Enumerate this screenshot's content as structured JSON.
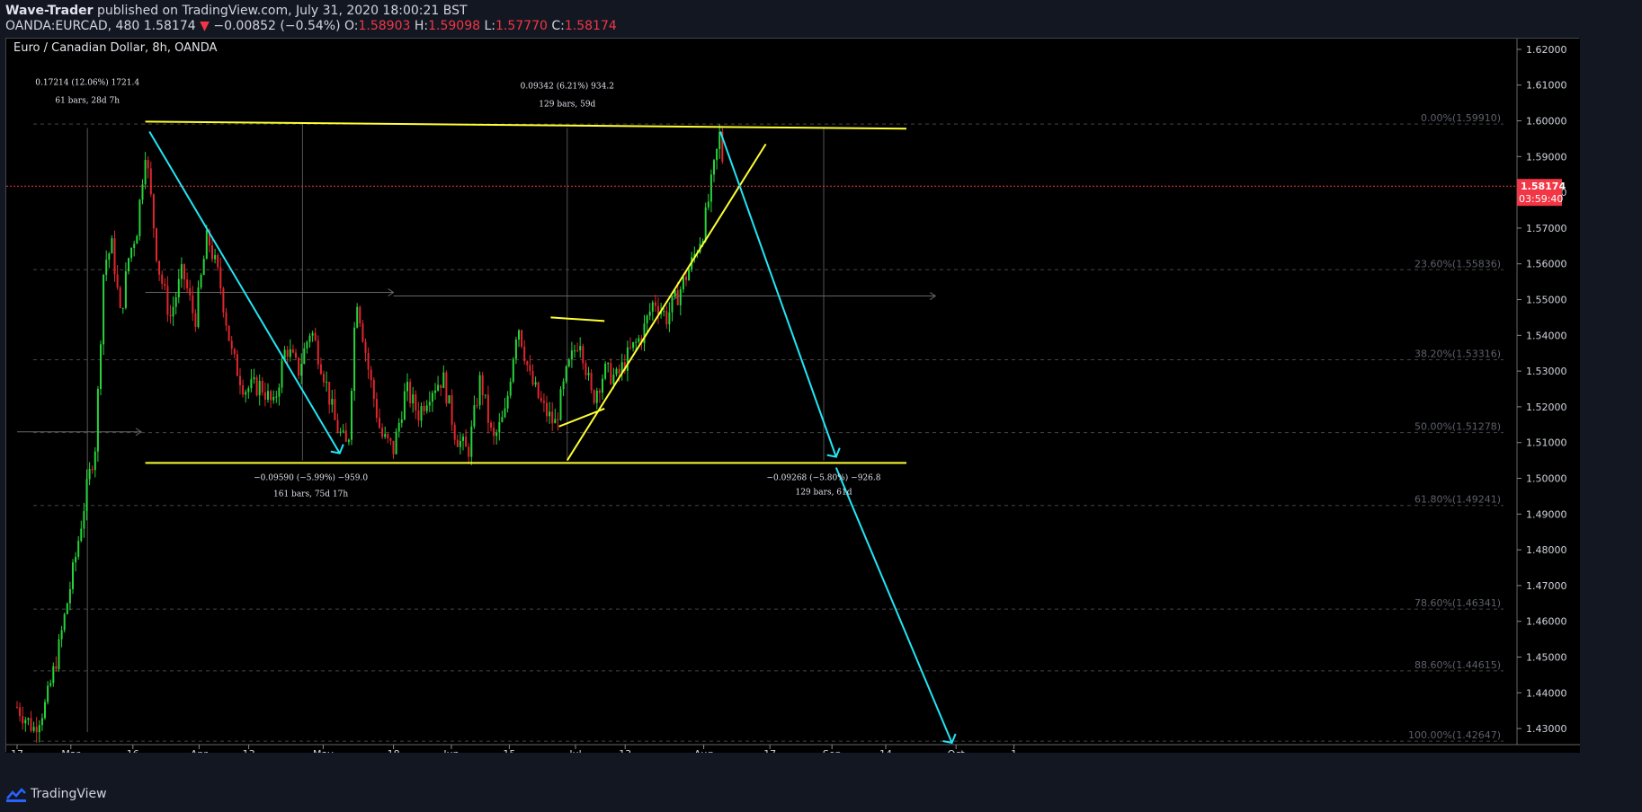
{
  "header": {
    "author": "Wave-Trader",
    "published": "published on TradingView.com, July 31, 2020 18:00:21 BST",
    "symbol": "OANDA:EURCAD, 480",
    "last": "1.58174",
    "change_arrow": "▼",
    "change": "−0.00852 (−0.54%)",
    "ohlc_labels": {
      "o": "O:",
      "h": "H:",
      "l": "L:",
      "c": "C:"
    },
    "open": "1.58903",
    "high": "1.59098",
    "low": "1.57770",
    "close": "1.58174"
  },
  "chart_title": "Euro / Canadian Dollar, 8h, OANDA",
  "footer": {
    "brand": "TradingView"
  },
  "colors": {
    "background": "#000000",
    "up": "#26d43a",
    "down": "#e0262d",
    "trendline_yellow": "#ffff33",
    "projection_cyan": "#22e6f5",
    "price_label": "#f23645",
    "grid": "#2a2e39",
    "fib": "#444444"
  },
  "chart_data": {
    "type": "candlestick",
    "instrument": "EURCAD",
    "interval": "8h",
    "ylim": [
      1.4255,
      1.623
    ],
    "y_ticks": [
      "1.43000",
      "1.44000",
      "1.45000",
      "1.46000",
      "1.47000",
      "1.48000",
      "1.49000",
      "1.50000",
      "1.51000",
      "1.52000",
      "1.53000",
      "1.54000",
      "1.55000",
      "1.56000",
      "1.57000",
      "1.58000",
      "1.59000",
      "1.60000",
      "1.61000",
      "1.62000"
    ],
    "x_ticks": [
      {
        "label": "17",
        "date": "2020-02-17"
      },
      {
        "label": "Mar",
        "date": "2020-03-01"
      },
      {
        "label": "16",
        "date": "2020-03-16"
      },
      {
        "label": "Apr",
        "date": "2020-04-01"
      },
      {
        "label": "13",
        "date": "2020-04-13"
      },
      {
        "label": "May",
        "date": "2020-05-01"
      },
      {
        "label": "18",
        "date": "2020-05-18"
      },
      {
        "label": "Jun",
        "date": "2020-06-01"
      },
      {
        "label": "15",
        "date": "2020-06-15"
      },
      {
        "label": "Jul",
        "date": "2020-07-01"
      },
      {
        "label": "13",
        "date": "2020-07-13"
      },
      {
        "label": "Aug",
        "date": "2020-08-01"
      },
      {
        "label": "17",
        "date": "2020-08-17"
      },
      {
        "label": "Sep",
        "date": "2020-09-01"
      },
      {
        "label": "14",
        "date": "2020-09-14"
      },
      {
        "label": "Oct",
        "date": "2020-10-01"
      },
      {
        "label": "1",
        "date": "2020-10-15"
      }
    ],
    "last_price": {
      "value": 1.58174,
      "label": "1.58174",
      "countdown": "03:59:40"
    },
    "fib_levels": [
      {
        "label": "0.00%(1.59910)",
        "value": 1.5991
      },
      {
        "label": "23.60%(1.55836)",
        "value": 1.55836
      },
      {
        "label": "38.20%(1.53316)",
        "value": 1.53316
      },
      {
        "label": "50.00%(1.51278)",
        "value": 1.51278
      },
      {
        "label": "61.80%(1.49241)",
        "value": 1.49241
      },
      {
        "label": "78.60%(1.46341)",
        "value": 1.46341
      },
      {
        "label": "88.60%(1.44615)",
        "value": 1.44615
      },
      {
        "label": "100.00%(1.42647)",
        "value": 1.42647
      }
    ],
    "price_path": [
      [
        "2020-02-17",
        1.436
      ],
      [
        "2020-02-21",
        1.43
      ],
      [
        "2020-02-24",
        1.437
      ],
      [
        "2020-02-27",
        1.452
      ],
      [
        "2020-03-02",
        1.477
      ],
      [
        "2020-03-05",
        1.498
      ],
      [
        "2020-03-07",
        1.51
      ],
      [
        "2020-03-09",
        1.56
      ],
      [
        "2020-03-11",
        1.565
      ],
      [
        "2020-03-13",
        1.545
      ],
      [
        "2020-03-15",
        1.562
      ],
      [
        "2020-03-17",
        1.57
      ],
      [
        "2020-03-19",
        1.592
      ],
      [
        "2020-03-20",
        1.582
      ],
      [
        "2020-03-22",
        1.56
      ],
      [
        "2020-03-25",
        1.545
      ],
      [
        "2020-03-28",
        1.558
      ],
      [
        "2020-03-31",
        1.544
      ],
      [
        "2020-04-03",
        1.568
      ],
      [
        "2020-04-06",
        1.555
      ],
      [
        "2020-04-09",
        1.534
      ],
      [
        "2020-04-12",
        1.525
      ],
      [
        "2020-04-16",
        1.526
      ],
      [
        "2020-04-19",
        1.52
      ],
      [
        "2020-04-22",
        1.537
      ],
      [
        "2020-04-25",
        1.53
      ],
      [
        "2020-04-28",
        1.542
      ],
      [
        "2020-05-01",
        1.53
      ],
      [
        "2020-05-04",
        1.515
      ],
      [
        "2020-05-07",
        1.508
      ],
      [
        "2020-05-09",
        1.552
      ],
      [
        "2020-05-12",
        1.53
      ],
      [
        "2020-05-15",
        1.512
      ],
      [
        "2020-05-18",
        1.508
      ],
      [
        "2020-05-21",
        1.525
      ],
      [
        "2020-05-24",
        1.518
      ],
      [
        "2020-05-27",
        1.525
      ],
      [
        "2020-05-30",
        1.528
      ],
      [
        "2020-06-02",
        1.512
      ],
      [
        "2020-06-05",
        1.507
      ],
      [
        "2020-06-08",
        1.528
      ],
      [
        "2020-06-11",
        1.51
      ],
      [
        "2020-06-14",
        1.518
      ],
      [
        "2020-06-17",
        1.544
      ],
      [
        "2020-06-20",
        1.528
      ],
      [
        "2020-06-23",
        1.52
      ],
      [
        "2020-06-26",
        1.515
      ],
      [
        "2020-06-29",
        1.53
      ],
      [
        "2020-07-02",
        1.54
      ],
      [
        "2020-07-05",
        1.522
      ],
      [
        "2020-07-08",
        1.53
      ],
      [
        "2020-07-11",
        1.528
      ],
      [
        "2020-07-14",
        1.535
      ],
      [
        "2020-07-17",
        1.54
      ],
      [
        "2020-07-20",
        1.55
      ],
      [
        "2020-07-23",
        1.545
      ],
      [
        "2020-07-26",
        1.552
      ],
      [
        "2020-07-29",
        1.56
      ],
      [
        "2020-08-01",
        1.57
      ],
      [
        "2020-08-04",
        1.59
      ],
      [
        "2020-08-05",
        1.597
      ],
      [
        "2020-08-06",
        1.582
      ]
    ],
    "drawings": {
      "upper_channel": {
        "from": [
          "2020-03-19",
          1.5998
        ],
        "to": [
          "2020-09-19",
          1.5978
        ]
      },
      "lower_channel": {
        "from": [
          "2020-03-19",
          1.5043
        ],
        "to": [
          "2020-09-19",
          1.5043
        ]
      },
      "projection_1": {
        "from": [
          "2020-08-05",
          1.597
        ],
        "to": [
          "2020-09-02",
          1.506
        ]
      },
      "projection_2": {
        "from": [
          "2020-09-02",
          1.503
        ],
        "to": [
          "2020-09-30",
          1.426
        ]
      },
      "decline_line": {
        "from": [
          "2020-03-20",
          1.597
        ],
        "to": [
          "2020-05-05",
          1.507
        ]
      },
      "rising_support": {
        "from": [
          "2020-06-29",
          1.505
        ],
        "to": [
          "2020-08-16",
          1.5935
        ]
      },
      "wedge_top": {
        "from": [
          "2020-06-25",
          1.545
        ],
        "to": [
          "2020-07-08",
          1.544
        ]
      },
      "wedge_bottom": {
        "from": [
          "2020-06-27",
          1.5145
        ],
        "to": [
          "2020-07-08",
          1.5195
        ]
      }
    },
    "measurements": [
      {
        "line1": "0.17214 (12.06%) 1721.4",
        "line2": "61 bars, 28d 7h"
      },
      {
        "line1": "−0.09590 (−5.99%) −959.0",
        "line2": "161 bars, 75d 17h"
      },
      {
        "line1": "0.09342 (6.21%) 934.2",
        "line2": "129 bars, 59d"
      },
      {
        "line1": "−0.09268 (−5.80%) −926.8",
        "line2": "129 bars, 61d"
      }
    ]
  }
}
